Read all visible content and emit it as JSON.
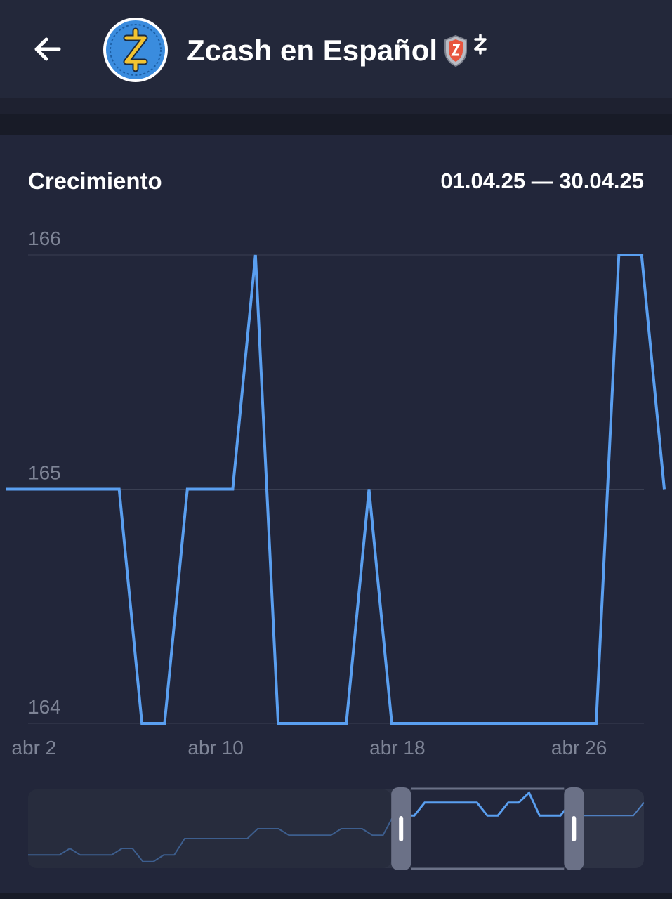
{
  "header": {
    "back_icon": "arrow-left-icon",
    "avatar_icon": "zcash-logo-icon",
    "title": "Zcash en Español",
    "badge_icons": [
      "shield-icon",
      "zcash-z-icon"
    ]
  },
  "chart": {
    "title": "Crecimiento",
    "date_range": "01.04.25 — 30.04.25"
  },
  "chart_data": {
    "type": "line",
    "title": "Crecimiento",
    "xlabel": "",
    "ylabel": "",
    "x_ticks": [
      "abr 2",
      "abr 10",
      "abr 18",
      "abr 26"
    ],
    "x_tick_days": [
      2,
      10,
      18,
      26
    ],
    "y_ticks": [
      "164",
      "165",
      "166"
    ],
    "ylim": [
      164,
      166
    ],
    "xlim": [
      1,
      30
    ],
    "grid": true,
    "legend": "none",
    "color": "#5a9ff0",
    "series": [
      {
        "x": [
          1,
          2,
          3,
          4,
          5,
          6,
          7,
          8,
          9,
          10,
          11,
          12,
          13,
          14,
          15,
          16,
          17,
          18,
          19,
          20,
          21,
          22,
          23,
          24,
          25,
          26,
          27,
          28,
          29,
          30
        ],
        "values": [
          165,
          165,
          165,
          165,
          165,
          165,
          164,
          164,
          165,
          165,
          165,
          166,
          164,
          164,
          164,
          164,
          165,
          164,
          164,
          164,
          164,
          164,
          164,
          164,
          164,
          164,
          164,
          166,
          166,
          165
        ]
      }
    ],
    "navigator": {
      "values": [
        163.4,
        163.4,
        163.4,
        163.4,
        163.6,
        163.4,
        163.4,
        163.4,
        163.4,
        163.6,
        163.6,
        163.2,
        163.2,
        163.4,
        163.4,
        163.9,
        163.9,
        163.9,
        163.9,
        163.9,
        163.9,
        163.9,
        164.2,
        164.2,
        164.2,
        164.0,
        164.0,
        164.0,
        164.0,
        164.0,
        164.2,
        164.2,
        164.2,
        164.0,
        164.0,
        164.6,
        164.6,
        164.6,
        165.0,
        165.0,
        165.0,
        165.0,
        165.0,
        165.0,
        164.6,
        164.6,
        165.0,
        165.0,
        165.3,
        164.6,
        164.6,
        164.6,
        165.0,
        164.6,
        164.6,
        164.6,
        164.6,
        164.6,
        164.6,
        165.0
      ],
      "selection_start_fraction": 0.6,
      "selection_end_fraction": 0.9
    }
  }
}
